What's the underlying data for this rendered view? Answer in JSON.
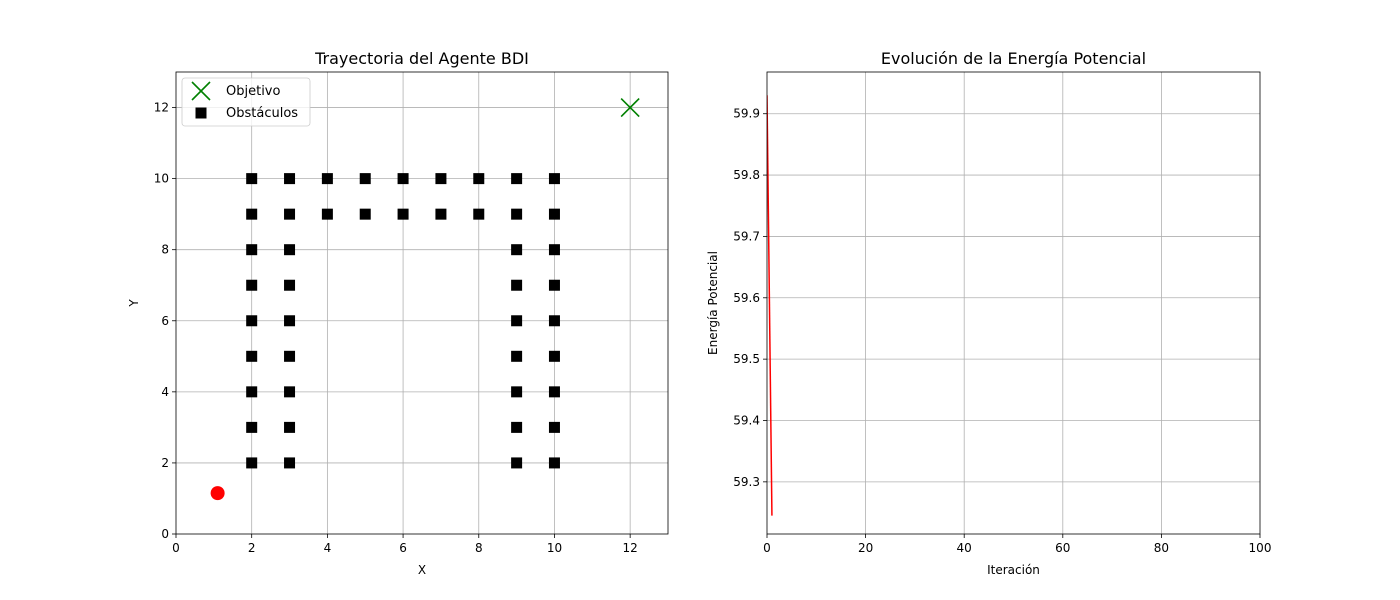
{
  "chart_data": [
    {
      "type": "scatter",
      "title": "Trayectoria del Agente BDI",
      "xlabel": "X",
      "ylabel": "Y",
      "xlim": [
        0,
        13
      ],
      "ylim": [
        0,
        13
      ],
      "xticks": [
        0,
        2,
        4,
        6,
        8,
        10,
        12
      ],
      "yticks": [
        0,
        2,
        4,
        6,
        8,
        10,
        12
      ],
      "grid": true,
      "legend_position": "top-left",
      "series": [
        {
          "name": "Objetivo",
          "marker": "x",
          "color": "#008000",
          "points": [
            [
              12,
              12
            ]
          ]
        },
        {
          "name": "Obstáculos",
          "marker": "square",
          "color": "#000000",
          "points": [
            [
              2,
              2
            ],
            [
              2,
              3
            ],
            [
              2,
              4
            ],
            [
              2,
              5
            ],
            [
              2,
              6
            ],
            [
              2,
              7
            ],
            [
              2,
              8
            ],
            [
              2,
              9
            ],
            [
              2,
              10
            ],
            [
              3,
              2
            ],
            [
              3,
              3
            ],
            [
              3,
              4
            ],
            [
              3,
              5
            ],
            [
              3,
              6
            ],
            [
              3,
              7
            ],
            [
              3,
              8
            ],
            [
              3,
              9
            ],
            [
              3,
              10
            ],
            [
              4,
              9
            ],
            [
              4,
              10
            ],
            [
              5,
              9
            ],
            [
              5,
              10
            ],
            [
              6,
              9
            ],
            [
              6,
              10
            ],
            [
              7,
              9
            ],
            [
              7,
              10
            ],
            [
              8,
              9
            ],
            [
              8,
              10
            ],
            [
              9,
              2
            ],
            [
              9,
              3
            ],
            [
              9,
              4
            ],
            [
              9,
              5
            ],
            [
              9,
              6
            ],
            [
              9,
              7
            ],
            [
              9,
              8
            ],
            [
              9,
              9
            ],
            [
              9,
              10
            ],
            [
              10,
              2
            ],
            [
              10,
              3
            ],
            [
              10,
              4
            ],
            [
              10,
              5
            ],
            [
              10,
              6
            ],
            [
              10,
              7
            ],
            [
              10,
              8
            ],
            [
              10,
              9
            ],
            [
              10,
              10
            ]
          ]
        },
        {
          "marker": "circle",
          "color": "#ff0000",
          "points": [
            [
              1.1,
              1.15
            ]
          ]
        }
      ]
    },
    {
      "type": "line",
      "title": "Evolución de la Energía Potencial",
      "xlabel": "Iteración",
      "ylabel": "Energía Potencial",
      "xlim": [
        0,
        100
      ],
      "ylim": [
        59.215,
        59.968
      ],
      "xticks": [
        0,
        20,
        40,
        60,
        80,
        100
      ],
      "yticks": [
        "59.3",
        "59.4",
        "59.5",
        "59.6",
        "59.7",
        "59.8",
        "59.9"
      ],
      "grid": true,
      "series": [
        {
          "color": "#ff0000",
          "x": [
            0,
            1
          ],
          "y": [
            59.93,
            59.245
          ]
        }
      ]
    }
  ]
}
